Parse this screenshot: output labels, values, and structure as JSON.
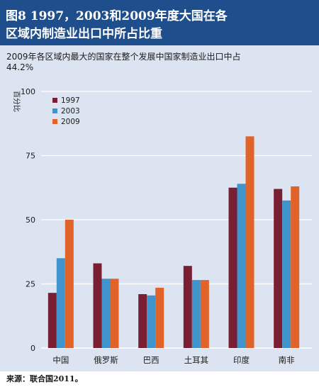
{
  "figure": {
    "title_line1": "图8  1997，2003和2009年度大国在各",
    "title_line2": "区域内制造业出口中所占比重",
    "subtitle_line1": "2009年各区域内最大的国家在整个发展中国家制造业出口中占",
    "subtitle_line2": "44.2%",
    "source": "来源：联合国2011。"
  },
  "colors": {
    "title_band": "#1f4e8c",
    "plot_background": "#dde4f1",
    "series_1997": "#7a1f33",
    "series_2003": "#3f94cc",
    "series_2009": "#e0642a"
  },
  "chart_data": {
    "type": "bar",
    "title": "图8  1997，2003和2009年度大国在各区域内制造业出口中所占比重",
    "subtitle": "2009年各区域内最大的国家在整个发展中国家制造业出口中占44.2%",
    "categories": [
      "中国",
      "俄罗斯",
      "巴西",
      "土耳其",
      "印度",
      "南非"
    ],
    "series": [
      {
        "name": "1997",
        "values": [
          21.5,
          33,
          21,
          32,
          62.5,
          62
        ]
      },
      {
        "name": "2003",
        "values": [
          35,
          27,
          20.5,
          26.5,
          64,
          57.5
        ]
      },
      {
        "name": "2009",
        "values": [
          50,
          27,
          23.5,
          26.5,
          82.5,
          63
        ]
      }
    ],
    "xlabel": "",
    "ylabel": "百分比",
    "ylim": [
      0,
      100
    ],
    "yticks": [
      0,
      25,
      50,
      75,
      100
    ],
    "grid": true,
    "legend_position": "top-left"
  }
}
